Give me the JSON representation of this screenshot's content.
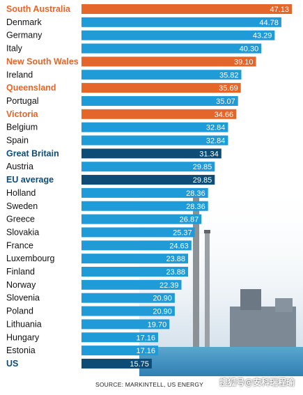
{
  "chart_data": {
    "type": "bar",
    "orientation": "horizontal",
    "categories": [
      "South Australia",
      "Denmark",
      "Germany",
      "Italy",
      "New South Wales",
      "Ireland",
      "Queensland",
      "Portugal",
      "Victoria",
      "Belgium",
      "Spain",
      "Great Britain",
      "Austria",
      "EU average",
      "Holland",
      "Sweden",
      "Greece",
      "Slovakia",
      "France",
      "Luxembourg",
      "Finland",
      "Norway",
      "Slovenia",
      "Poland",
      "Lithuania",
      "Hungary",
      "Estonia",
      "US"
    ],
    "values": [
      47.13,
      44.78,
      43.29,
      40.3,
      39.1,
      35.82,
      35.69,
      35.07,
      34.66,
      32.84,
      32.84,
      31.34,
      29.85,
      29.85,
      28.36,
      28.36,
      26.87,
      25.37,
      24.63,
      23.88,
      23.88,
      22.39,
      20.9,
      20.9,
      19.7,
      17.16,
      17.16,
      15.75
    ],
    "value_labels": [
      "47.13",
      "44.78",
      "43.29",
      "40.30",
      "39.10",
      "35.82",
      "35.69",
      "35.07",
      "34.66",
      "32.84",
      "32.84",
      "31.34",
      "29.85",
      "29.85",
      "28.36",
      "28.36",
      "26.87",
      "25.37",
      "24.63",
      "23.88",
      "23.88",
      "22.39",
      "20.90",
      "20.90",
      "19.70",
      "17.16",
      "17.16",
      "15.75"
    ],
    "groups": [
      "australia",
      "other",
      "other",
      "other",
      "australia",
      "other",
      "australia",
      "other",
      "australia",
      "other",
      "other",
      "highlight",
      "other",
      "highlight",
      "other",
      "other",
      "other",
      "other",
      "other",
      "other",
      "other",
      "other",
      "other",
      "other",
      "other",
      "other",
      "other",
      "highlight"
    ],
    "colors": {
      "australia": "#E4662A",
      "other": "#1F9BD7",
      "highlight": "#0E4C78",
      "default_label": "#111111"
    },
    "title": "",
    "xlabel": "",
    "ylabel": "",
    "xlim": [
      0,
      50
    ],
    "grid": false,
    "legend": "none",
    "source": "SOURCE: MARKINTELL, US ENERGY"
  },
  "watermark": "搜狐号@安科瑞程瑜"
}
